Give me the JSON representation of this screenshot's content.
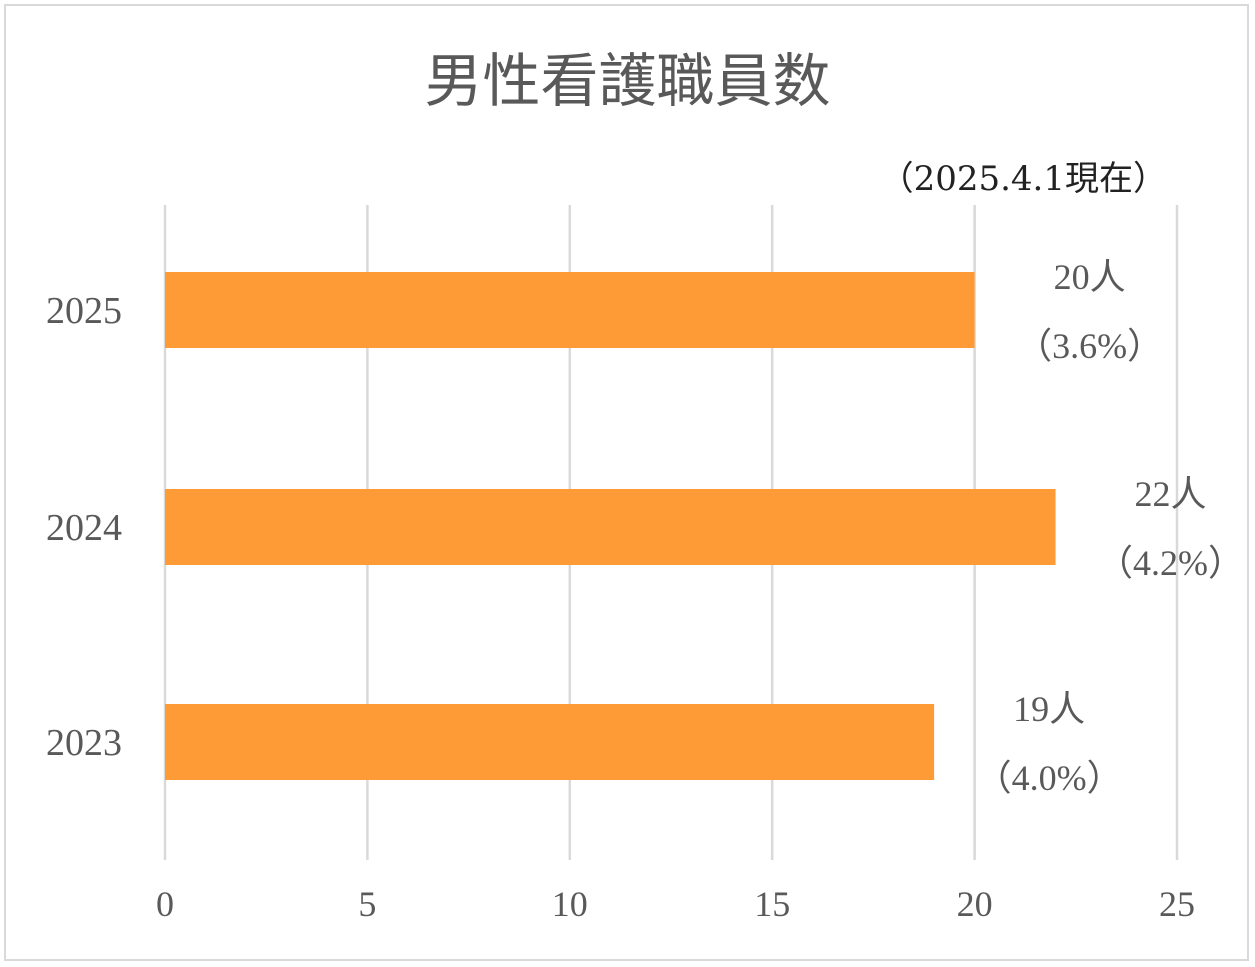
{
  "chart_data": {
    "type": "bar",
    "orientation": "horizontal",
    "title": "男性看護職員数",
    "note": "（2025.4.1現在）",
    "categories": [
      "2025",
      "2024",
      "2023"
    ],
    "values": [
      20,
      22,
      19
    ],
    "data_labels": [
      {
        "count": "20人",
        "pct": "（3.6%）"
      },
      {
        "count": "22人",
        "pct": "（4.2%）"
      },
      {
        "count": "19人",
        "pct": "（4.0%）"
      }
    ],
    "xlim": [
      0,
      25
    ],
    "xticks": [
      "0",
      "5",
      "10",
      "15",
      "20",
      "25"
    ],
    "grid": true,
    "legend": "none",
    "bar_color": "#FF9B37",
    "grid_color": "#D9D9D9"
  }
}
